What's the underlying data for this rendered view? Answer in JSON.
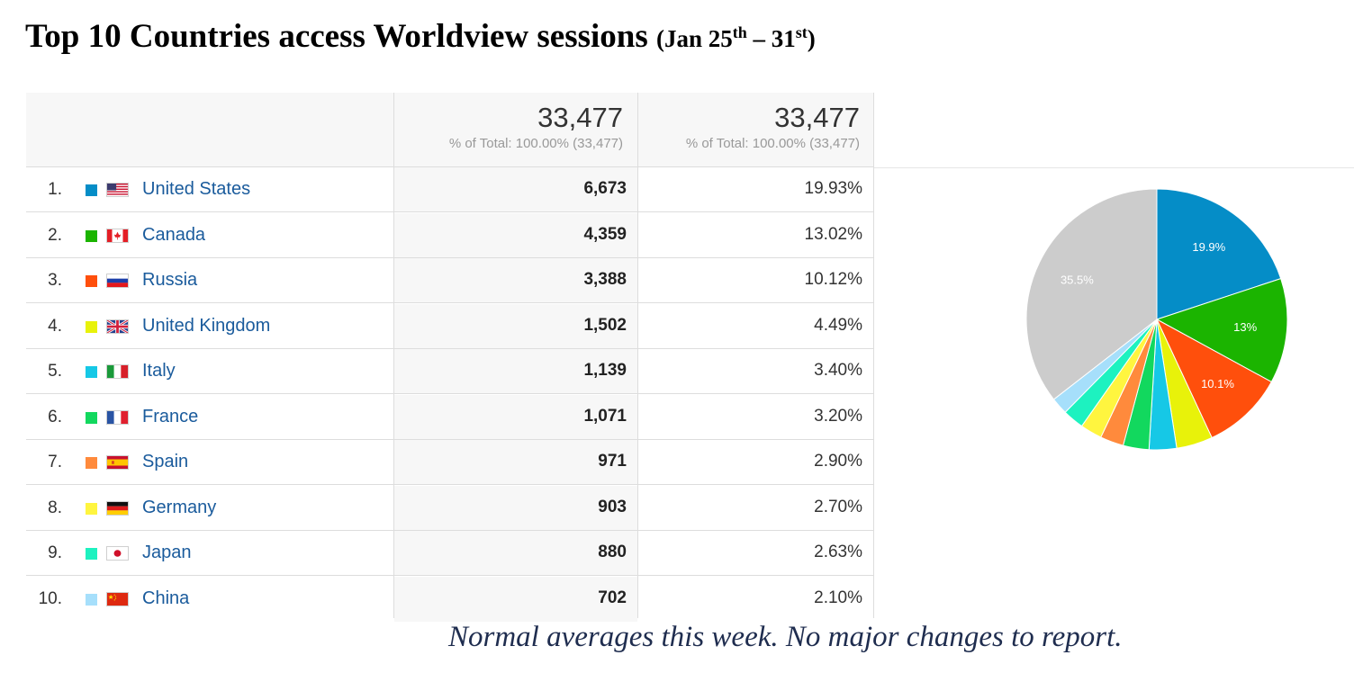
{
  "title": {
    "main": "Top 10 Countries access Worldview sessions",
    "dates_open": "(Jan 25",
    "sup1": "th",
    "dates_dash": " – 31",
    "sup2": "st",
    "dates_close": ")"
  },
  "table": {
    "columns": [
      {
        "total": "33,477",
        "subtitle": "% of Total: 100.00% (33,477)"
      },
      {
        "total": "33,477",
        "subtitle": "% of Total: 100.00% (33,477)"
      }
    ]
  },
  "rows": [
    {
      "rank": "1.",
      "country": "United States",
      "sessions": "6,673",
      "percent": "19.93%",
      "color": "#058dc7",
      "flag": "us-flag-icon"
    },
    {
      "rank": "2.",
      "country": "Canada",
      "sessions": "4,359",
      "percent": "13.02%",
      "color": "#1bb400",
      "flag": "ca-flag-icon"
    },
    {
      "rank": "3.",
      "country": "Russia",
      "sessions": "3,388",
      "percent": "10.12%",
      "color": "#ff4f0c",
      "flag": "ru-flag-icon"
    },
    {
      "rank": "4.",
      "country": "United Kingdom",
      "sessions": "1,502",
      "percent": "4.49%",
      "color": "#e8f20a",
      "flag": "gb-flag-icon"
    },
    {
      "rank": "5.",
      "country": "Italy",
      "sessions": "1,139",
      "percent": "3.40%",
      "color": "#16c8e6",
      "flag": "it-flag-icon"
    },
    {
      "rank": "6.",
      "country": "France",
      "sessions": "1,071",
      "percent": "3.20%",
      "color": "#12d85e",
      "flag": "fr-flag-icon"
    },
    {
      "rank": "7.",
      "country": "Spain",
      "sessions": "971",
      "percent": "2.90%",
      "color": "#ff8a3c",
      "flag": "es-flag-icon"
    },
    {
      "rank": "8.",
      "country": "Germany",
      "sessions": "903",
      "percent": "2.70%",
      "color": "#fff53f",
      "flag": "de-flag-icon"
    },
    {
      "rank": "9.",
      "country": "Japan",
      "sessions": "880",
      "percent": "2.63%",
      "color": "#1df2c0",
      "flag": "jp-flag-icon"
    },
    {
      "rank": "10.",
      "country": "China",
      "sessions": "702",
      "percent": "2.10%",
      "color": "#a6dffb",
      "flag": "cn-flag-icon"
    }
  ],
  "chart_data": {
    "type": "pie",
    "categories": [
      "United States",
      "Canada",
      "Russia",
      "United Kingdom",
      "Italy",
      "France",
      "Spain",
      "Germany",
      "Japan",
      "China",
      "Other"
    ],
    "values": [
      19.93,
      13.02,
      10.12,
      4.49,
      3.4,
      3.2,
      2.9,
      2.7,
      2.63,
      2.1,
      35.51
    ],
    "colors": [
      "#058dc7",
      "#1bb400",
      "#ff4f0c",
      "#e8f20a",
      "#16c8e6",
      "#12d85e",
      "#ff8a3c",
      "#fff53f",
      "#1df2c0",
      "#a6dffb",
      "#cccccc"
    ],
    "slice_labels": [
      "19.9%",
      "13%",
      "10.1%",
      "",
      "",
      "",
      "",
      "",
      "",
      "",
      "35.5%"
    ]
  },
  "note": "Normal averages this week.  No major changes to report."
}
